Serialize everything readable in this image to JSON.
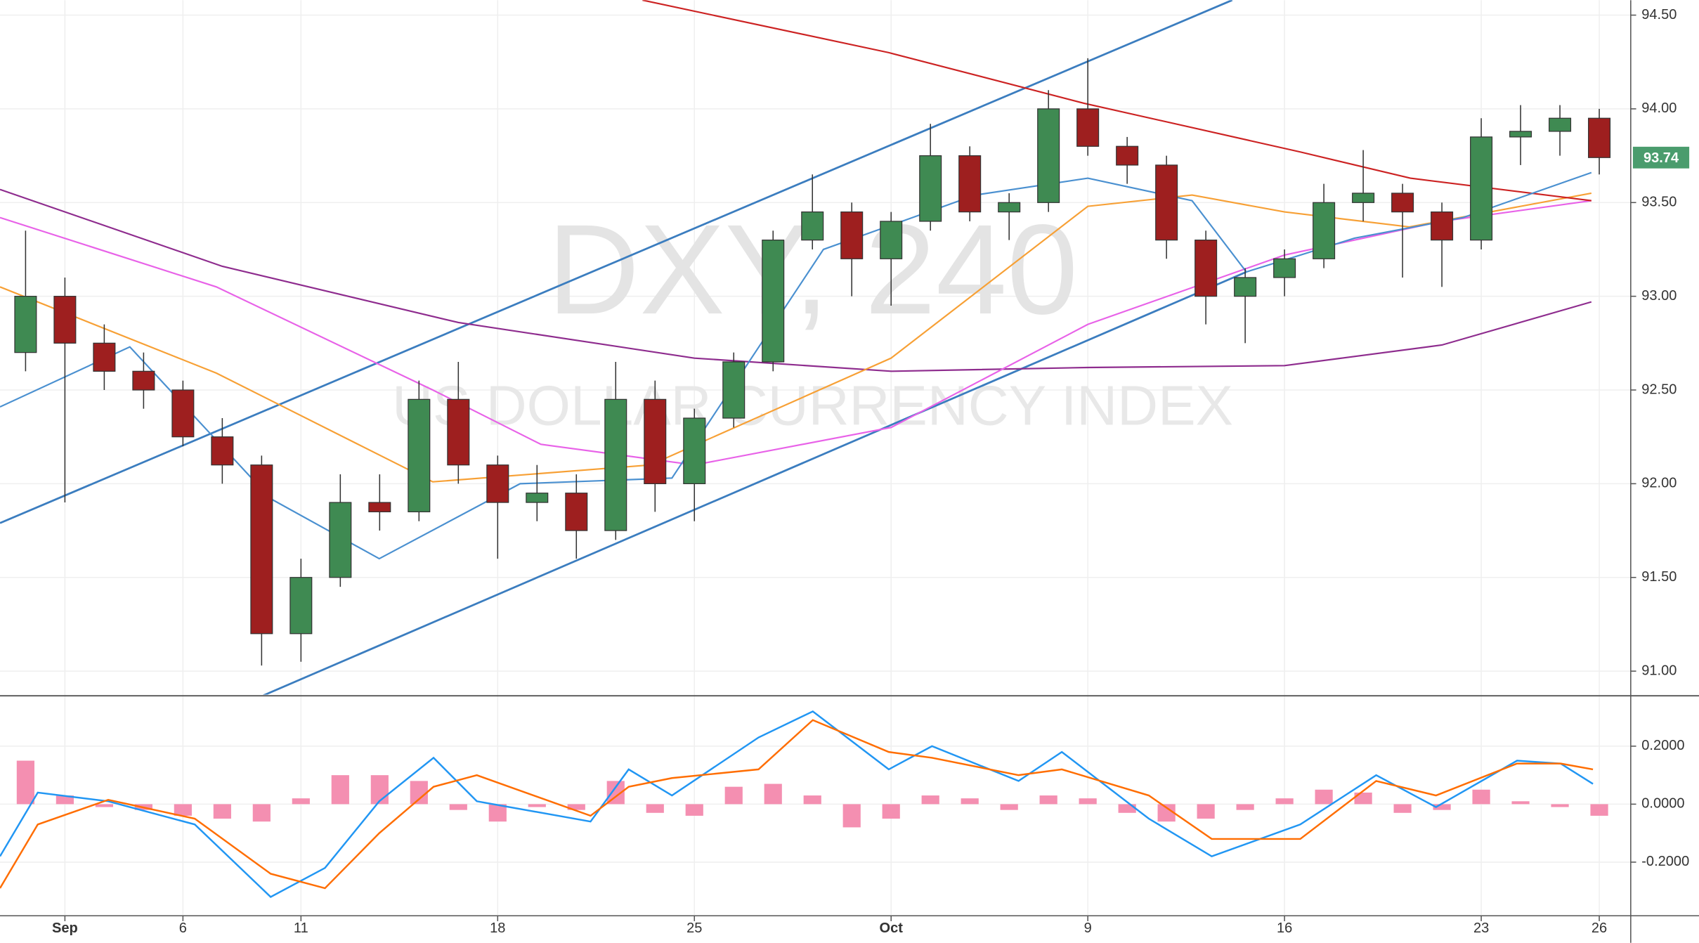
{
  "chart_data": [
    {
      "type": "candlestick",
      "title": "DXY, 240",
      "subtitle": "US DOLLAR CURRENCY INDEX",
      "up_color": "#3f8a52",
      "down_color": "#9e1f1f",
      "x": [
        -1,
        0,
        1,
        2,
        3,
        4,
        5,
        6,
        7,
        8,
        9,
        10,
        11,
        12,
        13,
        14,
        15,
        16,
        17,
        18,
        19,
        20,
        21,
        22,
        23,
        24,
        25,
        26,
        27,
        28,
        29,
        30,
        31,
        32,
        33,
        34,
        35,
        36,
        37,
        38,
        39
      ],
      "ohlc": [
        [
          92.7,
          93.35,
          92.6,
          93.0
        ],
        [
          93.0,
          93.1,
          91.9,
          92.75
        ],
        [
          92.75,
          92.85,
          92.5,
          92.6
        ],
        [
          92.6,
          92.7,
          92.4,
          92.5
        ],
        [
          92.5,
          92.55,
          92.2,
          92.25
        ],
        [
          92.25,
          92.35,
          92.0,
          92.1
        ],
        [
          92.1,
          92.15,
          91.03,
          91.2
        ],
        [
          91.2,
          91.6,
          91.05,
          91.5
        ],
        [
          91.5,
          92.05,
          91.45,
          91.9
        ],
        [
          91.9,
          92.05,
          91.75,
          91.85
        ],
        [
          91.85,
          92.55,
          91.8,
          92.45
        ],
        [
          92.45,
          92.65,
          92.0,
          92.1
        ],
        [
          92.1,
          92.15,
          91.6,
          91.9
        ],
        [
          91.9,
          92.1,
          91.8,
          91.95
        ],
        [
          91.95,
          92.05,
          91.6,
          91.75
        ],
        [
          91.75,
          92.65,
          91.7,
          92.45
        ],
        [
          92.45,
          92.55,
          91.85,
          92.0
        ],
        [
          92.0,
          92.4,
          91.8,
          92.35
        ],
        [
          92.35,
          92.7,
          92.3,
          92.65
        ],
        [
          92.65,
          93.35,
          92.6,
          93.3
        ],
        [
          93.3,
          93.65,
          93.25,
          93.45
        ],
        [
          93.45,
          93.5,
          93.0,
          93.2
        ],
        [
          93.2,
          93.45,
          92.95,
          93.4
        ],
        [
          93.4,
          93.92,
          93.35,
          93.75
        ],
        [
          93.75,
          93.8,
          93.4,
          93.45
        ],
        [
          93.45,
          93.55,
          93.3,
          93.5
        ],
        [
          93.5,
          94.1,
          93.45,
          94.0
        ],
        [
          94.0,
          94.27,
          93.75,
          93.8
        ],
        [
          93.8,
          93.85,
          93.6,
          93.7
        ],
        [
          93.7,
          93.75,
          93.2,
          93.3
        ],
        [
          93.3,
          93.35,
          92.85,
          93.0
        ],
        [
          93.0,
          93.15,
          92.75,
          93.1
        ],
        [
          93.1,
          93.25,
          93.0,
          93.2
        ],
        [
          93.2,
          93.6,
          93.15,
          93.5
        ],
        [
          93.5,
          93.78,
          93.4,
          93.55
        ],
        [
          93.55,
          93.6,
          93.1,
          93.45
        ],
        [
          93.45,
          93.5,
          93.05,
          93.3
        ],
        [
          93.3,
          93.95,
          93.25,
          93.85
        ],
        [
          93.85,
          94.02,
          93.7,
          93.88
        ],
        [
          93.88,
          94.02,
          93.75,
          93.95
        ],
        [
          93.95,
          94.0,
          93.65,
          93.74
        ]
      ],
      "last_value": 93.74,
      "last_color": "#4a9c6d",
      "overlays": [
        {
          "color": "#8e2c8e",
          "x": [
            -1.65,
            4,
            10,
            16,
            21,
            26,
            31,
            35,
            38.8
          ],
          "values": [
            93.57,
            93.16,
            92.86,
            92.67,
            92.6,
            92.62,
            92.63,
            92.74,
            92.97
          ]
        },
        {
          "color": "#e862e8",
          "x": [
            -1.65,
            3.85,
            9.35,
            12.1,
            16,
            21,
            26,
            31,
            35,
            38.8
          ],
          "values": [
            93.42,
            93.05,
            92.5,
            92.21,
            92.1,
            92.3,
            92.85,
            93.22,
            93.4,
            93.51
          ]
        },
        {
          "color": "#f7a035",
          "x": [
            -1.65,
            3.85,
            9.35,
            14.88,
            21,
            26,
            28.65,
            31,
            34.17,
            38.8
          ],
          "values": [
            93.05,
            92.59,
            92.01,
            92.1,
            92.67,
            93.48,
            93.54,
            93.45,
            93.37,
            93.55
          ]
        },
        {
          "color": "#cc2222",
          "x": [
            14.68,
            20.94,
            25.9,
            31.4,
            34.2,
            38.8
          ],
          "values": [
            94.58,
            94.3,
            94.03,
            93.77,
            93.63,
            93.51
          ]
        },
        {
          "color": "#4a90d0",
          "x": [
            -1.65,
            1.65,
            5.23,
            7.99,
            11.57,
            15.43,
            19.28,
            23.14,
            26,
            28.65,
            30.03,
            32.78,
            35.54,
            38.8
          ],
          "values": [
            92.41,
            92.73,
            91.92,
            91.6,
            92.0,
            92.03,
            93.25,
            93.54,
            93.63,
            93.51,
            93.13,
            93.31,
            93.42,
            93.66
          ]
        }
      ],
      "trendlines": [
        {
          "color": "#3b7dbf",
          "x": [
            -1.65,
            29.67
          ],
          "values": [
            91.79,
            94.58
          ]
        },
        {
          "color": "#3b7dbf",
          "x": [
            5.04,
            30.03
          ],
          "values": [
            90.87,
            93.13
          ]
        }
      ],
      "xlim": [
        -1.65,
        39.8
      ],
      "ylim": [
        90.88,
        94.58
      ],
      "yticks": [
        {
          "value": 91,
          "label": "91.00"
        },
        {
          "value": 91.5,
          "label": "91.50"
        },
        {
          "value": 92,
          "label": "92.00"
        },
        {
          "value": 92.5,
          "label": "92.50"
        },
        {
          "value": 93,
          "label": "93.00"
        },
        {
          "value": 93.5,
          "label": "93.50"
        },
        {
          "value": 94,
          "label": "94.00"
        },
        {
          "value": 94.5,
          "label": "94.50"
        }
      ],
      "grid": true
    },
    {
      "type": "macd",
      "histogram": {
        "color": "#f48fb1",
        "x": [
          -1,
          0,
          1,
          2,
          3,
          4,
          5,
          6,
          7,
          8,
          9,
          10,
          11,
          12,
          13,
          14,
          15,
          16,
          17,
          18,
          19,
          20,
          21,
          22,
          23,
          24,
          25,
          26,
          27,
          28,
          29,
          30,
          31,
          32,
          33,
          34,
          35,
          36,
          37,
          38,
          39
        ],
        "values": [
          0.15,
          0.03,
          -0.01,
          -0.02,
          -0.04,
          -0.05,
          -0.06,
          0.02,
          0.1,
          0.1,
          0.08,
          -0.02,
          -0.06,
          -0.01,
          -0.02,
          0.08,
          -0.03,
          -0.04,
          0.06,
          0.07,
          0.03,
          -0.08,
          -0.05,
          0.03,
          0.02,
          -0.02,
          0.03,
          0.02,
          -0.03,
          -0.06,
          -0.05,
          -0.02,
          0.02,
          0.05,
          0.04,
          -0.03,
          -0.02,
          0.05,
          0.01,
          -0.01,
          -0.04
        ]
      },
      "series": [
        {
          "color": "#2196f3",
          "x": [
            -1.65,
            -0.69,
            1.1,
            3.3,
            5.23,
            6.61,
            7.99,
            9.37,
            10.47,
            13.36,
            14.33,
            15.43,
            17.63,
            19.01,
            20.94,
            22.04,
            24.24,
            25.34,
            27.55,
            29.15,
            31.4,
            33.33,
            34.85,
            36.91,
            38.02,
            38.84
          ],
          "values": [
            -0.18,
            0.04,
            0.01,
            -0.07,
            -0.32,
            -0.22,
            0.01,
            0.16,
            0.01,
            -0.06,
            0.12,
            0.03,
            0.23,
            0.32,
            0.12,
            0.2,
            0.08,
            0.18,
            -0.05,
            -0.18,
            -0.07,
            0.1,
            -0.01,
            0.15,
            0.14,
            0.07
          ]
        },
        {
          "color": "#ff6d00",
          "x": [
            -1.65,
            -0.69,
            1.1,
            3.3,
            5.23,
            6.61,
            7.99,
            9.37,
            10.47,
            13.36,
            14.33,
            15.43,
            17.63,
            19.01,
            20.94,
            22.04,
            24.24,
            25.34,
            27.55,
            29.15,
            31.4,
            33.33,
            34.85,
            36.91,
            38.02,
            38.84
          ],
          "values": [
            -0.29,
            -0.07,
            0.015,
            -0.05,
            -0.24,
            -0.29,
            -0.1,
            0.06,
            0.1,
            -0.04,
            0.06,
            0.09,
            0.12,
            0.29,
            0.18,
            0.16,
            0.1,
            0.12,
            0.03,
            -0.12,
            -0.12,
            0.08,
            0.03,
            0.14,
            0.14,
            0.12
          ]
        }
      ],
      "xlim": [
        -1.65,
        39.8
      ],
      "ylim": [
        -0.385,
        0.37
      ],
      "yticks": [
        {
          "value": -0.2,
          "label": "-0.2000"
        },
        {
          "value": 0,
          "label": "0.0000"
        },
        {
          "value": 0.2,
          "label": "0.2000"
        }
      ],
      "xticks": [
        {
          "value": 0,
          "label": "Sep"
        },
        {
          "value": 3,
          "label": "6"
        },
        {
          "value": 6,
          "label": "11"
        },
        {
          "value": 11,
          "label": "18"
        },
        {
          "value": 16,
          "label": "25"
        },
        {
          "value": 21,
          "label": "Oct"
        },
        {
          "value": 26,
          "label": "9"
        },
        {
          "value": 31,
          "label": "16"
        },
        {
          "value": 36,
          "label": "23"
        },
        {
          "value": 39,
          "label": "26"
        }
      ],
      "grid": true
    }
  ]
}
